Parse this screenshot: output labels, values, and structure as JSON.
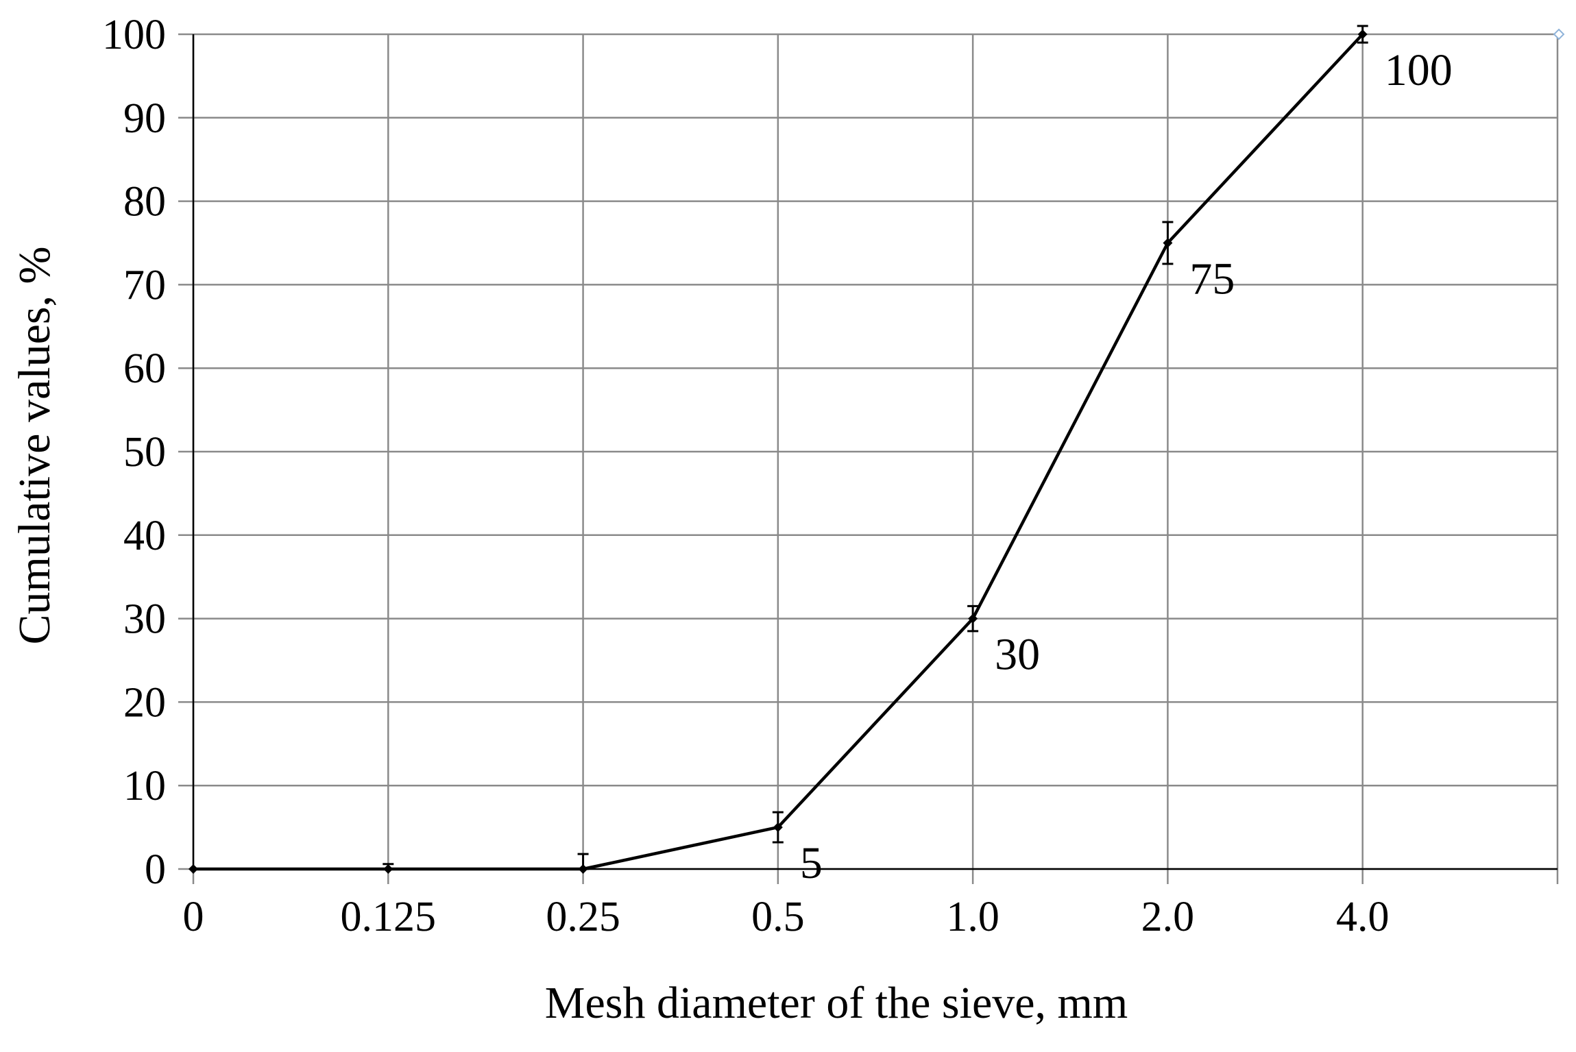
{
  "chart_data": {
    "type": "line",
    "title": "",
    "xlabel": "Mesh diameter of the sieve, mm",
    "ylabel": "Cumulative values, %",
    "categories": [
      "0",
      "0.125",
      "0.25",
      "0.5",
      "1.0",
      "2.0",
      "4.0"
    ],
    "series": [
      {
        "values": [
          0,
          0,
          0,
          5,
          30,
          75,
          100
        ],
        "errors": [
          0,
          0.6,
          1.8,
          1.8,
          1.5,
          2.5,
          1.0
        ],
        "data_labels": [
          "",
          "",
          "",
          "5",
          "30",
          "75",
          "100"
        ],
        "color": "#000000"
      }
    ],
    "ylim": [
      0,
      100
    ],
    "yticks": [
      0,
      10,
      20,
      30,
      40,
      50,
      60,
      70,
      80,
      90,
      100
    ],
    "grid": true,
    "legend": "none"
  }
}
